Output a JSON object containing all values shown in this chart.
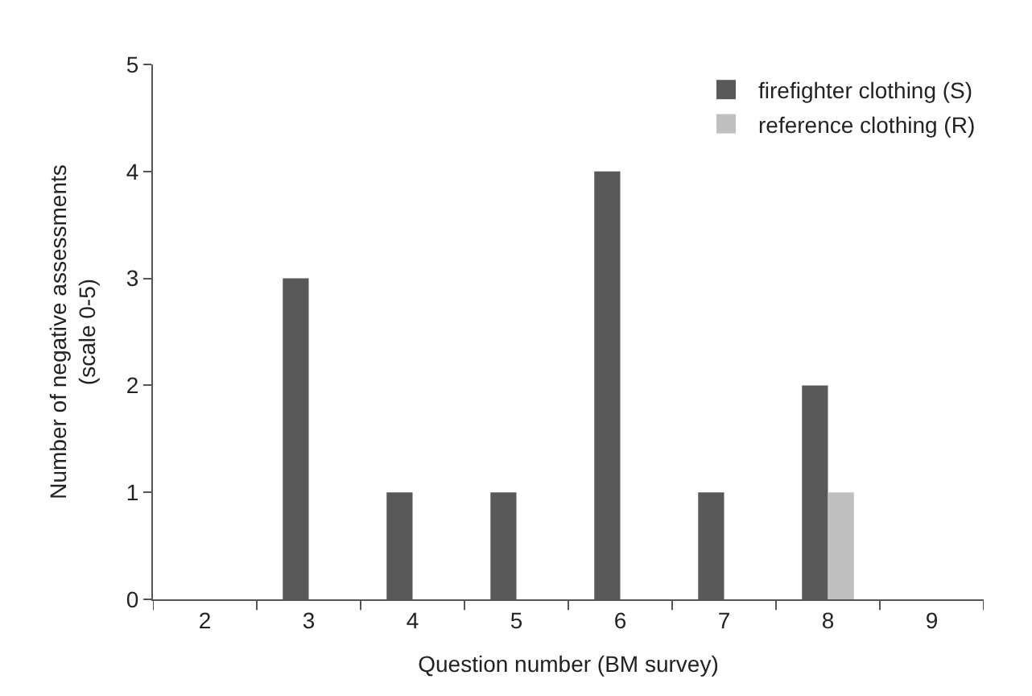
{
  "chart_data": {
    "type": "bar",
    "xlabel": "Question number (BM survey)",
    "ylabel": "Number of negative assessments\n(scale 0-5)",
    "categories": [
      "2",
      "3",
      "4",
      "5",
      "6",
      "7",
      "8",
      "9"
    ],
    "series": [
      {
        "name": "firefighter clothing (S)",
        "color": "#595959",
        "values": [
          0,
          3,
          1,
          1,
          4,
          1,
          2,
          0
        ]
      },
      {
        "name": "reference clothing (R)",
        "color": "#c0c0c0",
        "values": [
          0,
          0,
          0,
          0,
          0,
          0,
          1,
          0
        ]
      }
    ],
    "ylim": [
      0,
      5
    ],
    "yticks": [
      0,
      1,
      2,
      3,
      4,
      5
    ],
    "grid": false,
    "legend": "top right"
  }
}
